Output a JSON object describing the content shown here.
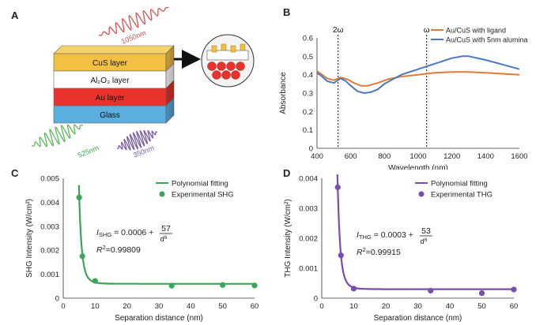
{
  "panel_letters": {
    "a": "A",
    "b": "B",
    "c": "C",
    "d": "D"
  },
  "schematic": {
    "layers": [
      "CuS layer",
      "Al₂O₃ layer",
      "Au layer",
      "Glass"
    ],
    "layer_colors": [
      "#f4c041",
      "#ffffff",
      "#e8322b",
      "#5aaee0"
    ],
    "wave_labels": [
      "1050nm",
      "525nm",
      "350nm"
    ],
    "wave_colors": [
      "#d9534f",
      "#5cb85c",
      "#7b5ea7"
    ]
  },
  "chart_data": [
    {
      "panel": "B",
      "type": "line",
      "xlabel": "Wavelength (nm)",
      "ylabel": "Absorbance",
      "xlim": [
        400,
        1600
      ],
      "ylim": [
        0,
        0.6
      ],
      "xticks": [
        400,
        600,
        800,
        1000,
        1200,
        1400,
        1600
      ],
      "yticks": [
        0,
        0.1,
        0.2,
        0.3,
        0.4,
        0.5,
        0.6
      ],
      "legend_position": "top-right",
      "vlines": [
        {
          "x": 525,
          "label": "2ω"
        },
        {
          "x": 1050,
          "label": "ω"
        }
      ],
      "series": [
        {
          "name": "Au/CuS with ligand",
          "color": "#e07b39",
          "x": [
            400,
            430,
            460,
            500,
            540,
            580,
            620,
            660,
            700,
            760,
            820,
            900,
            1000,
            1100,
            1200,
            1300,
            1400,
            1500,
            1600
          ],
          "y": [
            0.42,
            0.4,
            0.38,
            0.37,
            0.385,
            0.375,
            0.355,
            0.34,
            0.34,
            0.355,
            0.375,
            0.39,
            0.4,
            0.41,
            0.415,
            0.415,
            0.41,
            0.405,
            0.4
          ]
        },
        {
          "name": "Au/CuS with 5nm alumina",
          "color": "#4a78c2",
          "x": [
            400,
            430,
            460,
            500,
            540,
            570,
            600,
            640,
            680,
            720,
            760,
            800,
            860,
            900,
            1000,
            1100,
            1200,
            1260,
            1300,
            1400,
            1500,
            1600
          ],
          "y": [
            0.41,
            0.39,
            0.365,
            0.355,
            0.38,
            0.365,
            0.34,
            0.31,
            0.3,
            0.305,
            0.32,
            0.35,
            0.38,
            0.4,
            0.43,
            0.46,
            0.49,
            0.5,
            0.5,
            0.48,
            0.455,
            0.43
          ]
        }
      ]
    },
    {
      "panel": "C",
      "type": "scatter",
      "xlabel": "Separation distance (nm)",
      "ylabel": "SHG Intensity (W/cm²)",
      "xlim": [
        0,
        60
      ],
      "ylim": [
        0,
        0.005
      ],
      "xticks": [
        0,
        10,
        20,
        30,
        40,
        50,
        60
      ],
      "yticks": [
        0,
        0.001,
        0.002,
        0.003,
        0.004,
        0.005
      ],
      "ytick_labels": [
        "0",
        "0.001",
        "0.002",
        "0.003",
        "0.004",
        "0.005"
      ],
      "legend_position": "top-right",
      "color": "#3aa655",
      "equation": {
        "lhs": "I",
        "sub": "SHG",
        "const": " = 0.0006 + ",
        "num": "57",
        "den": "d",
        "den_exp": "6"
      },
      "r2": {
        "label": "R",
        "exp": "2",
        "value": "=0.99809"
      },
      "series": [
        {
          "name": "Polynomial fitting",
          "kind": "line",
          "a": 0.0006,
          "b": 57,
          "n": 6
        },
        {
          "name": "Experimental SHG",
          "kind": "points",
          "x": [
            5,
            6,
            10,
            34,
            50,
            60
          ],
          "y": [
            0.0042,
            0.00175,
            0.00072,
            0.00052,
            0.00055,
            0.00053
          ],
          "err": [
            5e-05,
            4e-05,
            4e-05,
            3e-05,
            3e-05,
            3e-05
          ]
        }
      ]
    },
    {
      "panel": "D",
      "type": "scatter",
      "xlabel": "Separation distance (nm)",
      "ylabel": "THG Intensity (W/cm²)",
      "xlim": [
        0,
        60
      ],
      "ylim": [
        0,
        0.004
      ],
      "xticks": [
        0,
        10,
        20,
        30,
        40,
        50,
        60
      ],
      "yticks": [
        0,
        0.001,
        0.002,
        0.003,
        0.004
      ],
      "ytick_labels": [
        "0",
        "0.001",
        "0.002",
        "0.003",
        "0.004"
      ],
      "legend_position": "top-right",
      "color": "#7b4bb0",
      "equation": {
        "lhs": "I",
        "sub": "THG",
        "const": " = 0.0003 + ",
        "num": "53",
        "den": "d",
        "den_exp": "6"
      },
      "r2": {
        "label": "R",
        "exp": "2",
        "value": "=0.99915"
      },
      "series": [
        {
          "name": "Polynomial fitting",
          "kind": "line",
          "a": 0.0003,
          "b": 53,
          "n": 6
        },
        {
          "name": "Experimental THG",
          "kind": "points",
          "x": [
            5,
            6,
            10,
            34,
            50,
            60
          ],
          "y": [
            0.0037,
            0.00143,
            0.00032,
            0.00025,
            0.00017,
            0.00029
          ],
          "err": [
            0.00012,
            6e-05,
            4e-05,
            3e-05,
            3e-05,
            3e-05
          ]
        }
      ]
    }
  ]
}
